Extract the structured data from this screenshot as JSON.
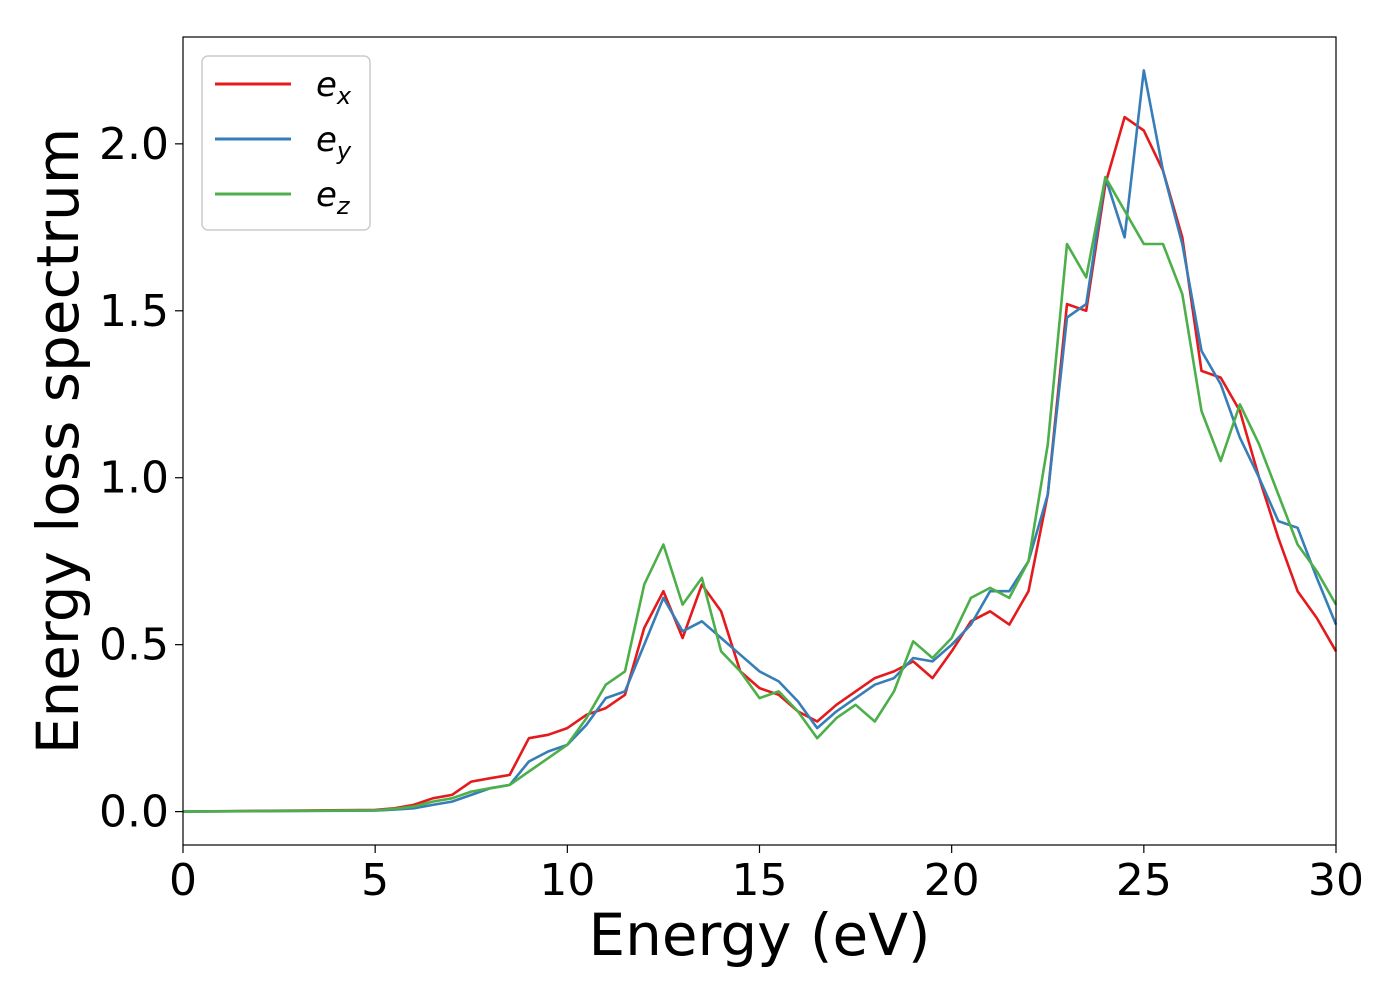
{
  "chart_data": {
    "type": "line",
    "title": "",
    "xlabel": "Energy (eV)",
    "ylabel": "Energy loss spectrum",
    "xlim": [
      0,
      30
    ],
    "ylim": [
      -0.1,
      2.32
    ],
    "xticks": [
      0,
      5,
      10,
      15,
      20,
      25,
      30
    ],
    "xtick_labels": [
      "0",
      "5",
      "10",
      "15",
      "20",
      "25",
      "30"
    ],
    "yticks": [
      0.0,
      0.5,
      1.0,
      1.5,
      2.0
    ],
    "ytick_labels": [
      "0.0",
      "0.5",
      "1.0",
      "1.5",
      "2.0"
    ],
    "grid": false,
    "legend_position": "top-left",
    "series": [
      {
        "name": "e_x",
        "label_base": "e",
        "label_sub": "x",
        "color": "#e41a1c",
        "x": [
          0,
          5,
          5.5,
          6,
          6.5,
          7,
          7.5,
          8,
          8.5,
          9,
          9.5,
          10,
          10.5,
          11,
          11.5,
          12,
          12.5,
          13,
          13.5,
          14,
          14.5,
          15,
          15.5,
          16,
          16.5,
          17,
          17.5,
          18,
          18.5,
          19,
          19.5,
          20,
          20.5,
          21,
          21.5,
          22,
          22.5,
          23,
          23.5,
          24,
          24.5,
          25,
          25.5,
          26,
          26.5,
          27,
          27.5,
          28,
          28.5,
          29,
          29.5,
          30
        ],
        "y": [
          0.0,
          0.005,
          0.01,
          0.02,
          0.04,
          0.05,
          0.09,
          0.1,
          0.11,
          0.22,
          0.23,
          0.25,
          0.29,
          0.31,
          0.35,
          0.55,
          0.66,
          0.52,
          0.68,
          0.6,
          0.42,
          0.37,
          0.35,
          0.3,
          0.27,
          0.32,
          0.36,
          0.4,
          0.42,
          0.45,
          0.4,
          0.48,
          0.57,
          0.6,
          0.56,
          0.66,
          0.95,
          1.52,
          1.5,
          1.88,
          2.08,
          2.04,
          1.92,
          1.72,
          1.32,
          1.3,
          1.2,
          1.0,
          0.82,
          0.66,
          0.58,
          0.48
        ]
      },
      {
        "name": "e_y",
        "label_base": "e",
        "label_sub": "y",
        "color": "#377eb8",
        "x": [
          0,
          5,
          5.5,
          6,
          6.5,
          7,
          7.5,
          8,
          8.5,
          9,
          9.5,
          10,
          10.5,
          11,
          11.5,
          12,
          12.5,
          13,
          13.5,
          14,
          14.5,
          15,
          15.5,
          16,
          16.5,
          17,
          17.5,
          18,
          18.5,
          19,
          19.5,
          20,
          20.5,
          21,
          21.5,
          22,
          22.5,
          23,
          23.5,
          24,
          24.5,
          25,
          25.5,
          26,
          26.5,
          27,
          27.5,
          28,
          28.5,
          29,
          29.5,
          30
        ],
        "y": [
          0.0,
          0.003,
          0.006,
          0.01,
          0.02,
          0.03,
          0.05,
          0.07,
          0.08,
          0.15,
          0.18,
          0.2,
          0.26,
          0.34,
          0.36,
          0.5,
          0.64,
          0.54,
          0.57,
          0.52,
          0.47,
          0.42,
          0.39,
          0.33,
          0.25,
          0.3,
          0.34,
          0.38,
          0.4,
          0.46,
          0.45,
          0.5,
          0.56,
          0.66,
          0.66,
          0.75,
          0.95,
          1.48,
          1.52,
          1.9,
          1.72,
          2.22,
          1.92,
          1.7,
          1.38,
          1.28,
          1.12,
          1.0,
          0.87,
          0.85,
          0.7,
          0.56
        ]
      },
      {
        "name": "e_z",
        "label_base": "e",
        "label_sub": "z",
        "color": "#4daf4a",
        "x": [
          0,
          5,
          5.5,
          6,
          6.5,
          7,
          7.5,
          8,
          8.5,
          9,
          9.5,
          10,
          10.5,
          11,
          11.5,
          12,
          12.5,
          13,
          13.5,
          14,
          14.5,
          15,
          15.5,
          16,
          16.5,
          17,
          17.5,
          18,
          18.5,
          19,
          19.5,
          20,
          20.5,
          21,
          21.5,
          22,
          22.5,
          23,
          23.5,
          24,
          24.5,
          25,
          25.5,
          26,
          26.5,
          27,
          27.5,
          28,
          28.5,
          29,
          29.5,
          30
        ],
        "y": [
          0.0,
          0.004,
          0.008,
          0.015,
          0.03,
          0.04,
          0.06,
          0.07,
          0.08,
          0.12,
          0.16,
          0.2,
          0.28,
          0.38,
          0.42,
          0.68,
          0.8,
          0.62,
          0.7,
          0.48,
          0.42,
          0.34,
          0.36,
          0.3,
          0.22,
          0.28,
          0.32,
          0.27,
          0.36,
          0.51,
          0.46,
          0.52,
          0.64,
          0.67,
          0.64,
          0.75,
          1.1,
          1.7,
          1.6,
          1.9,
          1.8,
          1.7,
          1.7,
          1.55,
          1.2,
          1.05,
          1.22,
          1.1,
          0.95,
          0.8,
          0.72,
          0.62
        ]
      }
    ]
  }
}
